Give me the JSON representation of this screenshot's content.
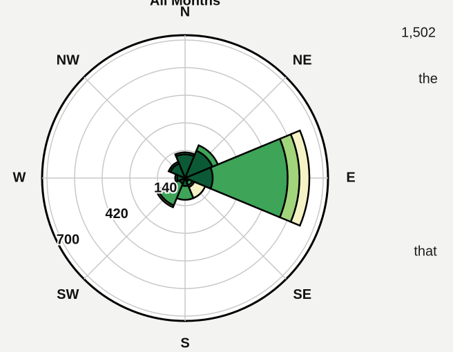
{
  "chart_data": {
    "type": "windrose",
    "title": "All Months",
    "categories": [
      "N",
      "NE",
      "E",
      "SE",
      "S",
      "SW",
      "W",
      "NW"
    ],
    "series": [
      {
        "color": "#0b5a35",
        "values": [
          120,
          150,
          140,
          20,
          40,
          30,
          40,
          80
        ]
      },
      {
        "color": "#3ea458",
        "values": [
          10,
          30,
          380,
          20,
          70,
          120,
          10,
          10
        ]
      },
      {
        "color": "#a2d47c",
        "values": [
          0,
          0,
          60,
          10,
          0,
          10,
          0,
          0
        ]
      },
      {
        "color": "#f5f3c6",
        "values": [
          0,
          0,
          50,
          60,
          0,
          0,
          0,
          0
        ]
      }
    ],
    "rlim": [
      0,
      700
    ],
    "rgrid": [
      140,
      280,
      420,
      560,
      700
    ],
    "rticks": [
      140,
      420,
      700
    ]
  },
  "document": {
    "fragments": [
      "1,502",
      "the",
      "that"
    ]
  }
}
